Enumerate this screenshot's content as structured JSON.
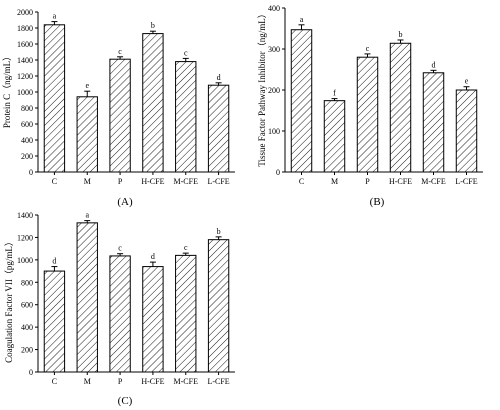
{
  "chart_data": [
    {
      "type": "bar",
      "panel_label": "(A)",
      "ylabel": "Protein C（ng/mL）",
      "xlabel": "",
      "categories": [
        "C",
        "M",
        "P",
        "H-CFE",
        "M-CFE",
        "L-CFE"
      ],
      "values": [
        1840,
        940,
        1410,
        1730,
        1380,
        1085
      ],
      "errors": [
        40,
        70,
        30,
        30,
        40,
        30
      ],
      "significance": [
        "a",
        "e",
        "c",
        "b",
        "c",
        "d"
      ],
      "ylim": [
        0,
        2000
      ],
      "yticks": [
        0,
        200,
        400,
        600,
        800,
        1000,
        1200,
        1400,
        1600,
        1800,
        2000
      ],
      "grid": false,
      "fill": "diagonal hatch"
    },
    {
      "type": "bar",
      "panel_label": "(B)",
      "ylabel": "Tissue Factor Pathway Inhibitor（ng/mL）",
      "xlabel": "",
      "categories": [
        "C",
        "M",
        "P",
        "H-CFE",
        "M-CFE",
        "L-CFE"
      ],
      "values": [
        347,
        174,
        280,
        314,
        242,
        200
      ],
      "errors": [
        12,
        5,
        8,
        8,
        6,
        8
      ],
      "significance": [
        "a",
        "f",
        "c",
        "b",
        "d",
        "e"
      ],
      "ylim": [
        0,
        400
      ],
      "yticks": [
        0,
        100,
        200,
        300,
        400
      ],
      "grid": false,
      "fill": "diagonal hatch"
    },
    {
      "type": "bar",
      "panel_label": "(C)",
      "ylabel": "Coagulation Factor VII（pg/mL）",
      "xlabel": "",
      "categories": [
        "C",
        "M",
        "P",
        "H-CFE",
        "M-CFE",
        "L-CFE"
      ],
      "values": [
        900,
        1330,
        1035,
        940,
        1040,
        1180
      ],
      "errors": [
        40,
        20,
        20,
        40,
        20,
        25
      ],
      "significance": [
        "d",
        "a",
        "c",
        "d",
        "c",
        "b"
      ],
      "ylim": [
        0,
        1400
      ],
      "yticks": [
        0,
        200,
        400,
        600,
        800,
        1000,
        1200,
        1400
      ],
      "grid": false,
      "fill": "diagonal hatch"
    }
  ]
}
